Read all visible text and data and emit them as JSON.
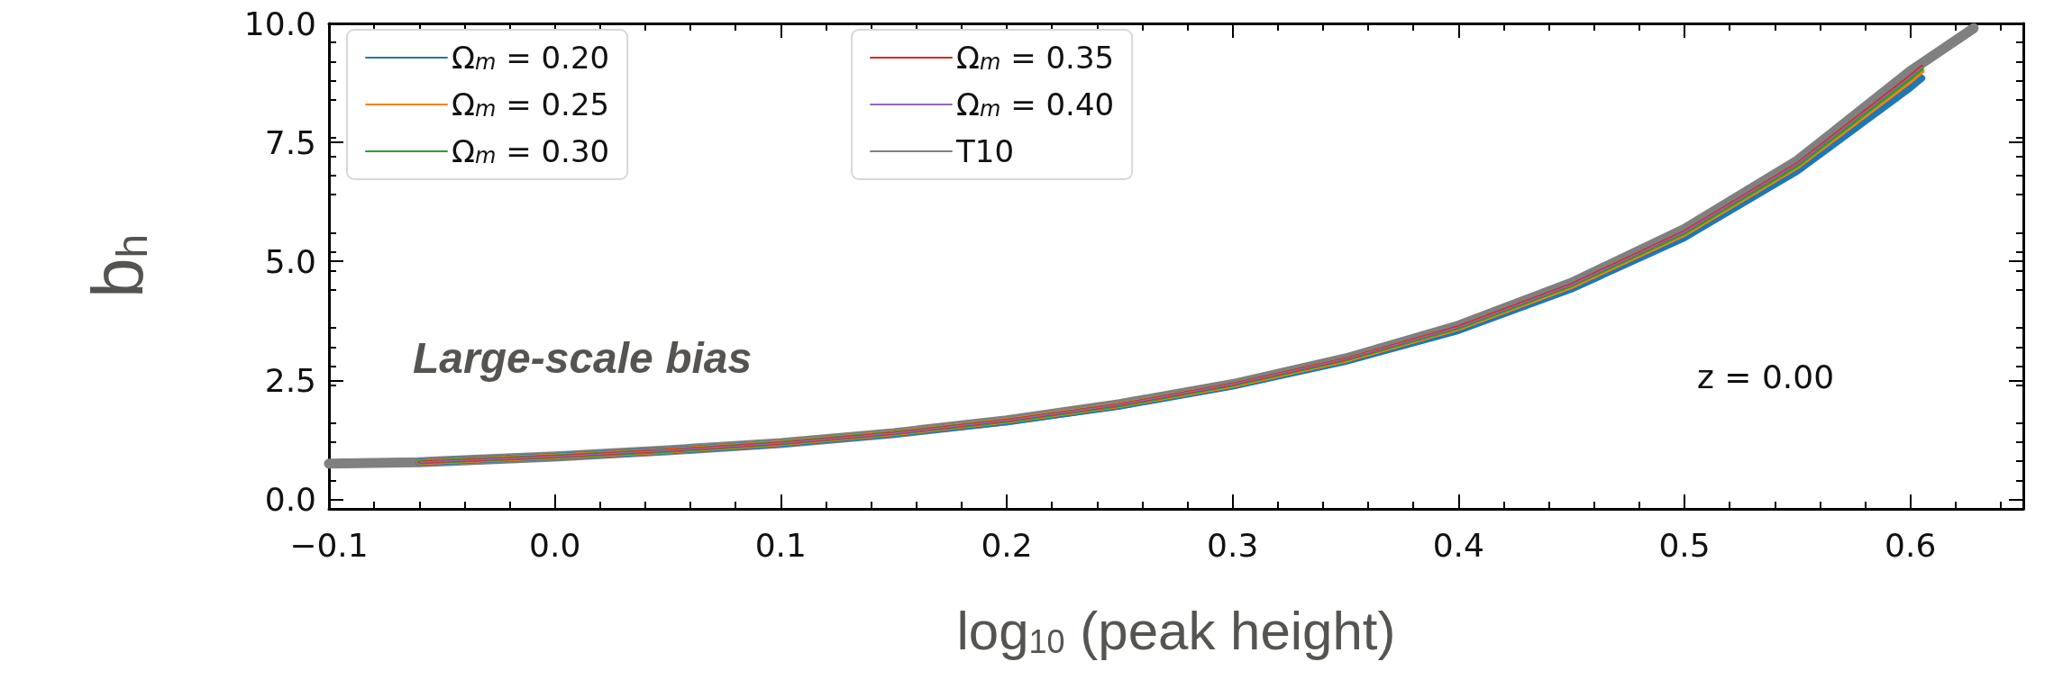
{
  "chart_data": {
    "type": "line",
    "xlabel": "log$_{10}$ (peak height)",
    "ylabel": "b$_{h}$",
    "annotations": [
      "Large-scale bias",
      "z = 0.00"
    ],
    "x": [
      -0.06,
      0,
      0.05,
      0.1,
      0.15,
      0.2,
      0.25,
      0.3,
      0.35,
      0.4,
      0.45,
      0.5,
      0.55,
      0.6,
      0.605
    ],
    "series": [
      {
        "name": "Ω$_{m}$ = 0.20",
        "color": "#1f77b4",
        "line_style": "solid",
        "values": [
          0.78,
          0.9,
          1.02,
          1.17,
          1.38,
          1.63,
          1.96,
          2.38,
          2.9,
          3.55,
          4.42,
          5.5,
          6.9,
          8.65,
          8.85
        ]
      },
      {
        "name": "Ω$_{m}$ = 0.25",
        "color": "#ff7f0e",
        "line_style": "dashed",
        "values": [
          0.78,
          0.9,
          1.02,
          1.18,
          1.39,
          1.65,
          1.98,
          2.4,
          2.93,
          3.6,
          4.48,
          5.58,
          7.0,
          8.8,
          9.0
        ]
      },
      {
        "name": "Ω$_{m}$ = 0.30",
        "color": "#2ca02c",
        "line_style": "dotted",
        "values": [
          0.78,
          0.9,
          1.02,
          1.18,
          1.39,
          1.65,
          1.98,
          2.41,
          2.94,
          3.61,
          4.5,
          5.6,
          7.02,
          8.85,
          9.05
        ]
      },
      {
        "name": "Ω$_{m}$ = 0.35",
        "color": "#d62728",
        "line_style": "dashdot",
        "values": [
          0.78,
          0.9,
          1.03,
          1.18,
          1.39,
          1.66,
          1.99,
          2.42,
          2.95,
          3.63,
          4.52,
          5.63,
          7.06,
          8.9,
          9.1
        ]
      },
      {
        "name": "Ω$_{m}$ = 0.40",
        "color": "#9467bd",
        "line_style": "dashdot",
        "values": [
          0.78,
          0.9,
          1.03,
          1.18,
          1.39,
          1.66,
          1.99,
          2.42,
          2.95,
          3.62,
          4.51,
          5.62,
          7.05,
          8.88,
          9.08
        ]
      },
      {
        "name": "T10",
        "color": "#808080",
        "line_style": "solid",
        "x": [
          -0.1,
          -0.06,
          -0.05,
          0,
          0.05,
          0.1,
          0.15,
          0.2,
          0.25,
          0.3,
          0.35,
          0.4,
          0.45,
          0.5,
          0.55,
          0.6,
          0.628
        ],
        "values": [
          0.75,
          0.78,
          0.8,
          0.9,
          1.03,
          1.18,
          1.39,
          1.66,
          2.0,
          2.42,
          2.96,
          3.65,
          4.55,
          5.68,
          7.12,
          9.0,
          9.9
        ]
      }
    ],
    "xlim": [
      -0.1,
      0.65
    ],
    "xticks": [
      {
        "value": -0.1,
        "label": "−0.1"
      },
      "0.0",
      0.1,
      0.2,
      0.3,
      0.4,
      0.5,
      0.6
    ],
    "ylim": [
      -0.2,
      10
    ],
    "yticks": [
      {
        "value": 0,
        "label": "0.0"
      },
      2.5,
      {
        "value": 5,
        "label": "5.0"
      },
      7.5,
      {
        "value": 10,
        "label": "10.0"
      }
    ],
    "legend": "top left",
    "grid": false
  }
}
